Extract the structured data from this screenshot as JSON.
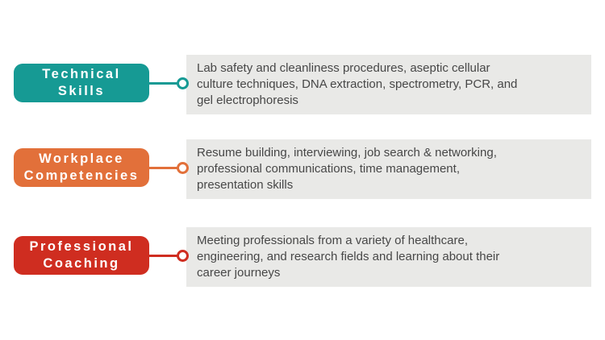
{
  "palette": {
    "page_background": "#ffffff",
    "desc_background": "#e9e9e7",
    "body_text": "#474747",
    "label_text": "#ffffff"
  },
  "rows": [
    {
      "label": "Technical\nSkills",
      "color": "#169a94",
      "description": "Lab safety and cleanliness procedures, aseptic cellular\nculture techniques, DNA extraction, spectrometry, PCR, and\ngel electrophoresis"
    },
    {
      "label": "Workplace\nCompetencies",
      "color": "#e2703a",
      "description": "Resume building, interviewing, job search & networking,\nprofessional communications, time management,\npresentation skills"
    },
    {
      "label": "Professional\nCoaching",
      "color": "#cf2d20",
      "description": "Meeting professionals from a variety of healthcare,\nengineering, and research fields and learning about their\ncareer journeys"
    }
  ]
}
